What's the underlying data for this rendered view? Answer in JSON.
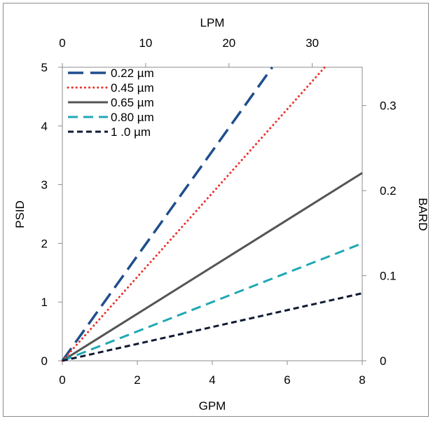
{
  "chart_data": {
    "type": "line",
    "title": "",
    "xlabel": "GPM",
    "ylabel": "PSID",
    "x2label": "LPM",
    "y2label": "BARD",
    "xlim": [
      0,
      8
    ],
    "ylim": [
      0,
      5
    ],
    "x2lim": [
      0,
      36
    ],
    "y2lim": [
      0,
      0.345
    ],
    "xticks": [
      0,
      2,
      4,
      6,
      8
    ],
    "yticks": [
      0,
      1,
      2,
      3,
      4,
      5
    ],
    "x2ticks": [
      0,
      10,
      20,
      30
    ],
    "y2ticks": [
      0,
      0.1,
      0.2,
      0.3
    ],
    "x2ticklabels": [
      "0",
      "10",
      "20",
      "30"
    ],
    "y2ticklabels": [
      "0",
      "0.1",
      "0.2",
      "0.3"
    ],
    "grid": false,
    "legend_position": "top-left",
    "series": [
      {
        "name": "0.22 µm",
        "x": [
          0,
          5.6
        ],
        "y": [
          0,
          5.0
        ],
        "color": "#1f4e8c",
        "dash": "long-dash"
      },
      {
        "name": "0.45 µm",
        "x": [
          0,
          7.0
        ],
        "y": [
          0,
          5.0
        ],
        "color": "#e8322b",
        "dash": "dot"
      },
      {
        "name": "0.65 µm",
        "x": [
          0,
          8.0
        ],
        "y": [
          0,
          3.2
        ],
        "color": "#555555",
        "dash": "solid"
      },
      {
        "name": "0.80 µm",
        "x": [
          0,
          8.0
        ],
        "y": [
          0,
          2.0
        ],
        "color": "#1fa8b4",
        "dash": "dash"
      },
      {
        "name": "1 .0 µm",
        "x": [
          0,
          8.0
        ],
        "y": [
          0,
          1.15
        ],
        "color": "#0f1a33",
        "dash": "short-dash"
      }
    ]
  }
}
